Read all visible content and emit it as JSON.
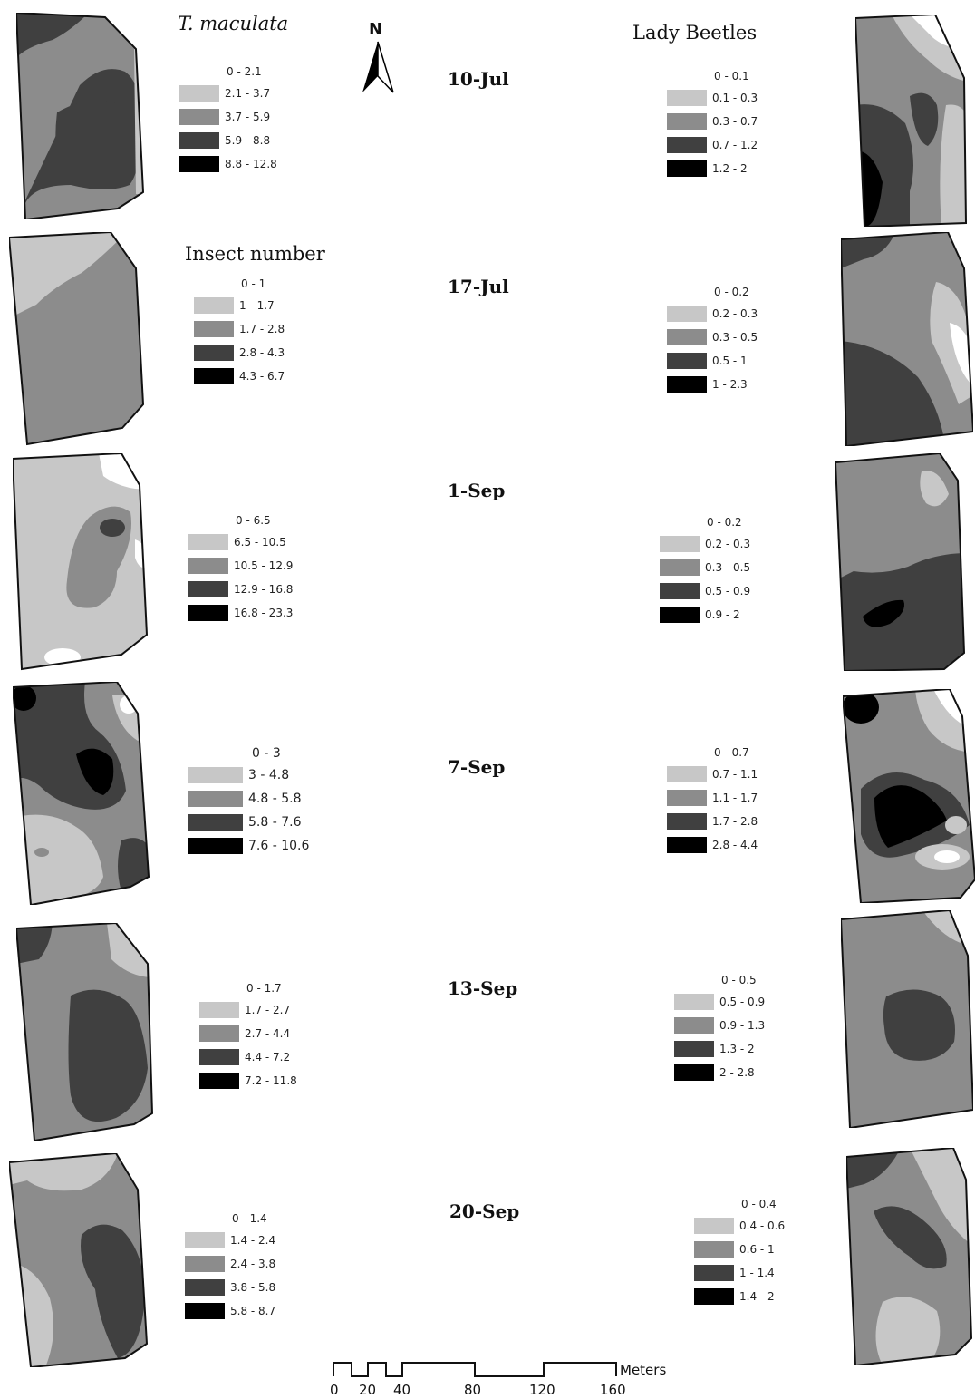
{
  "headings": {
    "left_species": "T. maculata",
    "right_species": "Lady Beetles",
    "legend_caption": "Insect number"
  },
  "north_arrow": {
    "label": "N"
  },
  "shade_colors": [
    "#ffffff",
    "#c7c7c7",
    "#8c8c8c",
    "#404040",
    "#000000"
  ],
  "rows": [
    {
      "date": "10-Jul",
      "left_legend": [
        "0 - 2.1",
        "2.1 - 3.7",
        "3.7 - 5.9",
        "5.9 - 8.8",
        "8.8 - 12.8"
      ],
      "right_legend": [
        "0 - 0.1",
        "0.1 - 0.3",
        "0.3 - 0.7",
        "0.7 - 1.2",
        "1.2 - 2"
      ]
    },
    {
      "date": "17-Jul",
      "left_legend": [
        "0 - 1",
        "1 - 1.7",
        "1.7 - 2.8",
        "2.8 - 4.3",
        "4.3 - 6.7"
      ],
      "right_legend": [
        "0 - 0.2",
        "0.2 - 0.3",
        "0.3 - 0.5",
        "0.5 - 1",
        "1 - 2.3"
      ]
    },
    {
      "date": "1-Sep",
      "left_legend": [
        "0 - 6.5",
        "6.5 - 10.5",
        "10.5 - 12.9",
        "12.9 - 16.8",
        "16.8 - 23.3"
      ],
      "right_legend": [
        "0 - 0.2",
        "0.2 - 0.3",
        "0.3 - 0.5",
        "0.5 - 0.9",
        "0.9 - 2"
      ]
    },
    {
      "date": "7-Sep",
      "left_legend": [
        "0 - 3",
        "3 - 4.8",
        "4.8 - 5.8",
        "5.8 - 7.6",
        "7.6 - 10.6"
      ],
      "right_legend": [
        "0 - 0.7",
        "0.7 - 1.1",
        "1.1 - 1.7",
        "1.7 - 2.8",
        "2.8 - 4.4"
      ]
    },
    {
      "date": "13-Sep",
      "left_legend": [
        "0 - 1.7",
        "1.7 - 2.7",
        "2.7 - 4.4",
        "4.4 - 7.2",
        "7.2 - 11.8"
      ],
      "right_legend": [
        "0 - 0.5",
        "0.5 - 0.9",
        "0.9 - 1.3",
        "1.3 - 2",
        "2 - 2.8"
      ]
    },
    {
      "date": "20-Sep",
      "left_legend": [
        "0 - 1.4",
        "1.4 - 2.4",
        "2.4 - 3.8",
        "3.8 - 5.8",
        "5.8 - 8.7"
      ],
      "right_legend": [
        "0 - 0.4",
        "0.4 - 0.6",
        "0.6 - 1",
        "1 - 1.4",
        "1.4 - 2"
      ]
    }
  ],
  "scale_bar": {
    "unit": "Meters",
    "ticks": [
      "0",
      "20",
      "40",
      "80",
      "120",
      "160"
    ]
  }
}
